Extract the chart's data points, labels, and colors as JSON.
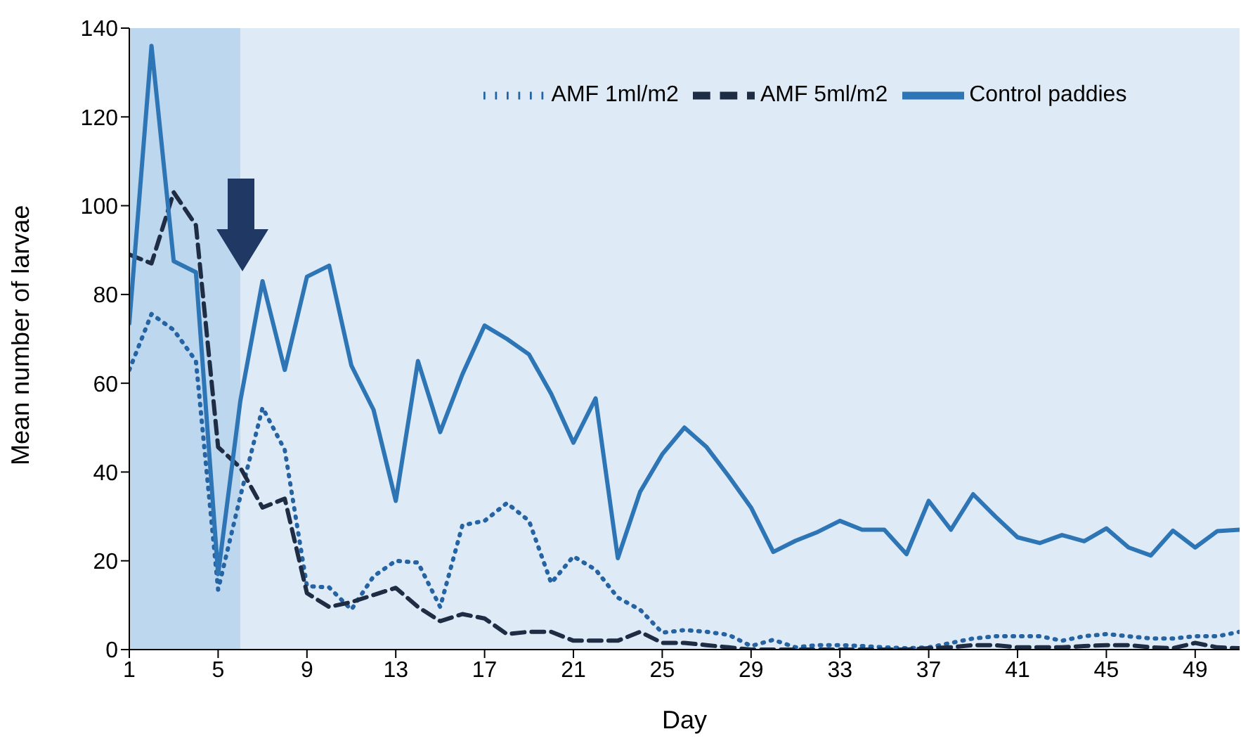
{
  "chart_data": {
    "type": "line",
    "xlabel": "Day",
    "ylabel": "Mean number of larvae",
    "x": [
      1,
      2,
      3,
      4,
      5,
      6,
      7,
      8,
      9,
      10,
      11,
      12,
      13,
      14,
      15,
      16,
      17,
      18,
      19,
      20,
      21,
      22,
      23,
      24,
      25,
      26,
      27,
      28,
      29,
      30,
      31,
      32,
      33,
      34,
      35,
      36,
      37,
      38,
      39,
      40,
      41,
      42,
      43,
      44,
      45,
      46,
      47,
      48,
      49,
      50,
      51
    ],
    "series": [
      {
        "name": "AMF 1ml/m2",
        "color": "#2563a3",
        "line_style": "dotted",
        "values": [
          63,
          75.6,
          72,
          65,
          13.5,
          34.5,
          54.5,
          45,
          14.3,
          14,
          9,
          16.5,
          20,
          19.6,
          9.6,
          28,
          29,
          33,
          29,
          15,
          21,
          18,
          11.7,
          9,
          3.8,
          4.4,
          4,
          3.3,
          0.8,
          2.2,
          0.5,
          1,
          1,
          0.8,
          0.5,
          0.3,
          0.5,
          1.5,
          2.5,
          3,
          3,
          3,
          2,
          3,
          3.5,
          3,
          2.5,
          2.5,
          3,
          3,
          4
        ]
      },
      {
        "name": "AMF 5ml/m2",
        "color": "#1f2d44",
        "line_style": "dashed",
        "values": [
          89,
          87,
          103,
          95.6,
          45.6,
          41,
          32,
          34,
          12.7,
          9.6,
          10.7,
          12.3,
          13.9,
          9.6,
          6.4,
          8,
          7,
          3.5,
          4,
          4,
          2,
          2,
          2,
          4,
          1.5,
          1.5,
          1,
          0.5,
          0,
          0,
          0,
          0,
          0,
          0,
          0,
          0,
          0.3,
          0.5,
          1,
          1,
          0.5,
          0.5,
          0.5,
          0.8,
          1,
          1,
          0.5,
          0.3,
          1.5,
          0.5,
          0.3
        ]
      },
      {
        "name": "Control paddies",
        "color": "#2e75b6",
        "line_style": "solid",
        "values": [
          73.5,
          136,
          87.5,
          85,
          17,
          56,
          83,
          63,
          84,
          86.5,
          64,
          54,
          33.5,
          65,
          49,
          62,
          73,
          70,
          66.5,
          57.6,
          46.6,
          56.6,
          20.6,
          35.5,
          44,
          50,
          45.6,
          39,
          32,
          22,
          24.5,
          26.5,
          29,
          27,
          27,
          21.5,
          33.5,
          27,
          35,
          30,
          25.3,
          24,
          25.8,
          24.4,
          27.3,
          23,
          21.2,
          26.8,
          23,
          26.7,
          27
        ]
      }
    ],
    "xlim": [
      1,
      51
    ],
    "xticks": [
      1,
      5,
      9,
      13,
      17,
      21,
      25,
      29,
      33,
      37,
      41,
      45,
      49
    ],
    "ylim": [
      0,
      140
    ],
    "yticks": [
      0,
      20,
      40,
      60,
      80,
      100,
      120,
      140
    ],
    "bands": [
      {
        "axis": "x",
        "from": 1,
        "to": 6,
        "color": "#bdd7ee"
      },
      {
        "axis": "x",
        "from": 6,
        "to": 51,
        "color": "#deebf7"
      }
    ],
    "grid": false,
    "legend": "top",
    "marker": "none"
  }
}
